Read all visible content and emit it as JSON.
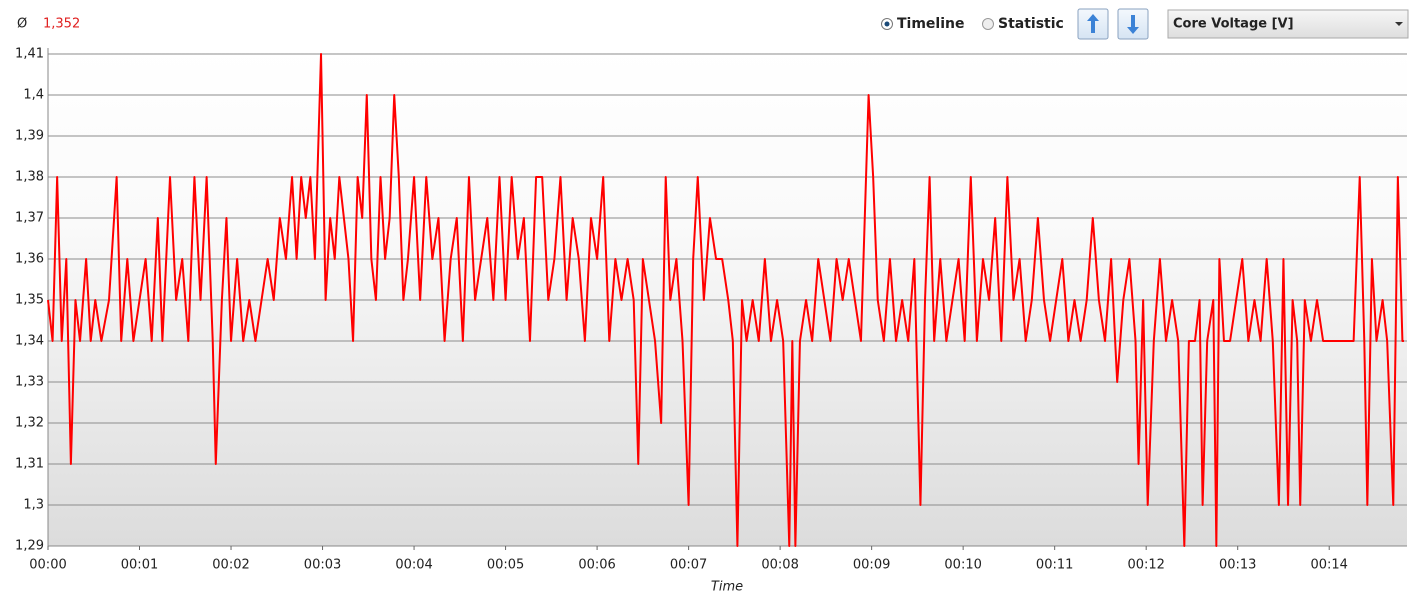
{
  "toolbar": {
    "average_symbol": "Ø",
    "average": "1,352",
    "radio_timeline": "Timeline",
    "radio_statistic": "Statistic",
    "sensor_select": "Core Voltage [V]"
  },
  "chart_data": {
    "type": "line",
    "color": "#ff0000",
    "grid": true,
    "xlabel": "Time",
    "xlim": [
      0,
      891
    ],
    "ylim": [
      1.29,
      1.41
    ],
    "xticks": [
      {
        "value": 0,
        "label": "00:00"
      },
      {
        "value": 60,
        "label": "00:01"
      },
      {
        "value": 120,
        "label": "00:02"
      },
      {
        "value": 180,
        "label": "00:03"
      },
      {
        "value": 240,
        "label": "00:04"
      },
      {
        "value": 300,
        "label": "00:05"
      },
      {
        "value": 360,
        "label": "00:06"
      },
      {
        "value": 420,
        "label": "00:07"
      },
      {
        "value": 480,
        "label": "00:08"
      },
      {
        "value": 540,
        "label": "00:09"
      },
      {
        "value": 600,
        "label": "00:10"
      },
      {
        "value": 660,
        "label": "00:11"
      },
      {
        "value": 720,
        "label": "00:12"
      },
      {
        "value": 780,
        "label": "00:13"
      },
      {
        "value": 840,
        "label": "00:14"
      }
    ],
    "yticks": [
      {
        "value": 1.29,
        "label": "1,29"
      },
      {
        "value": 1.3,
        "label": "1,3"
      },
      {
        "value": 1.31,
        "label": "1,31"
      },
      {
        "value": 1.32,
        "label": "1,32"
      },
      {
        "value": 1.33,
        "label": "1,33"
      },
      {
        "value": 1.34,
        "label": "1,34"
      },
      {
        "value": 1.35,
        "label": "1,35"
      },
      {
        "value": 1.36,
        "label": "1,36"
      },
      {
        "value": 1.37,
        "label": "1,37"
      },
      {
        "value": 1.38,
        "label": "1,38"
      },
      {
        "value": 1.39,
        "label": "1,39"
      },
      {
        "value": 1.4,
        "label": "1,4"
      },
      {
        "value": 1.41,
        "label": "1,41"
      }
    ],
    "x": [
      0,
      3,
      6,
      9,
      12,
      15,
      18,
      21,
      25,
      28,
      31,
      35,
      40,
      45,
      48,
      52,
      56,
      60,
      64,
      68,
      72,
      75,
      80,
      84,
      88,
      92,
      96,
      100,
      104,
      108,
      110,
      114,
      117,
      120,
      124,
      128,
      132,
      136,
      140,
      144,
      148,
      152,
      156,
      160,
      163,
      166,
      169,
      172,
      175,
      179,
      182,
      185,
      188,
      191,
      194,
      197,
      200,
      203,
      206,
      209,
      212,
      215,
      218,
      221,
      224,
      227,
      230,
      233,
      236,
      240,
      244,
      248,
      252,
      256,
      260,
      264,
      268,
      272,
      276,
      280,
      284,
      288,
      292,
      296,
      300,
      304,
      308,
      312,
      316,
      320,
      324,
      328,
      332,
      336,
      340,
      344,
      348,
      352,
      356,
      360,
      364,
      368,
      372,
      376,
      380,
      384,
      387,
      390,
      394,
      398,
      402,
      405,
      408,
      412,
      416,
      420,
      423,
      426,
      430,
      434,
      438,
      442,
      446,
      449,
      452,
      455,
      458,
      462,
      466,
      470,
      474,
      478,
      482,
      486,
      488,
      490,
      493,
      497,
      501,
      505,
      509,
      513,
      517,
      521,
      525,
      529,
      533,
      538,
      541,
      544,
      548,
      552,
      556,
      560,
      564,
      568,
      572,
      575,
      578,
      581,
      585,
      589,
      593,
      597,
      601,
      605,
      609,
      613,
      617,
      621,
      625,
      629,
      633,
      637,
      641,
      645,
      649,
      653,
      657,
      661,
      665,
      669,
      673,
      677,
      681,
      685,
      689,
      693,
      697,
      701,
      705,
      709,
      713,
      715,
      718,
      721,
      725,
      729,
      733,
      737,
      741,
      745,
      748,
      752,
      755,
      757,
      760,
      764,
      766,
      768,
      771,
      775,
      779,
      783,
      787,
      791,
      795,
      799,
      803,
      807,
      810,
      813,
      816,
      819,
      821,
      824,
      828,
      832,
      836,
      840,
      844,
      848,
      852,
      856,
      860,
      863,
      865,
      868,
      871,
      875,
      878,
      882,
      885,
      888,
      889
    ],
    "values": [
      1.35,
      1.34,
      1.38,
      1.34,
      1.36,
      1.31,
      1.35,
      1.34,
      1.36,
      1.34,
      1.35,
      1.34,
      1.35,
      1.38,
      1.34,
      1.36,
      1.34,
      1.35,
      1.36,
      1.34,
      1.37,
      1.34,
      1.38,
      1.35,
      1.36,
      1.34,
      1.38,
      1.35,
      1.38,
      1.34,
      1.31,
      1.35,
      1.37,
      1.34,
      1.36,
      1.34,
      1.35,
      1.34,
      1.35,
      1.36,
      1.35,
      1.37,
      1.36,
      1.38,
      1.36,
      1.38,
      1.37,
      1.38,
      1.36,
      1.41,
      1.35,
      1.37,
      1.36,
      1.38,
      1.37,
      1.36,
      1.34,
      1.38,
      1.37,
      1.4,
      1.36,
      1.35,
      1.38,
      1.36,
      1.37,
      1.4,
      1.38,
      1.35,
      1.36,
      1.38,
      1.35,
      1.38,
      1.36,
      1.37,
      1.34,
      1.36,
      1.37,
      1.34,
      1.38,
      1.35,
      1.36,
      1.37,
      1.35,
      1.38,
      1.35,
      1.38,
      1.36,
      1.37,
      1.34,
      1.38,
      1.38,
      1.35,
      1.36,
      1.38,
      1.35,
      1.37,
      1.36,
      1.34,
      1.37,
      1.36,
      1.38,
      1.34,
      1.36,
      1.35,
      1.36,
      1.35,
      1.31,
      1.36,
      1.35,
      1.34,
      1.32,
      1.38,
      1.35,
      1.36,
      1.34,
      1.3,
      1.36,
      1.38,
      1.35,
      1.37,
      1.36,
      1.36,
      1.35,
      1.34,
      1.29,
      1.35,
      1.34,
      1.35,
      1.34,
      1.36,
      1.34,
      1.35,
      1.34,
      1.29,
      1.34,
      1.29,
      1.34,
      1.35,
      1.34,
      1.36,
      1.35,
      1.34,
      1.36,
      1.35,
      1.36,
      1.35,
      1.34,
      1.4,
      1.38,
      1.35,
      1.34,
      1.36,
      1.34,
      1.35,
      1.34,
      1.36,
      1.3,
      1.35,
      1.38,
      1.34,
      1.36,
      1.34,
      1.35,
      1.36,
      1.34,
      1.38,
      1.34,
      1.36,
      1.35,
      1.37,
      1.34,
      1.38,
      1.35,
      1.36,
      1.34,
      1.35,
      1.37,
      1.35,
      1.34,
      1.35,
      1.36,
      1.34,
      1.35,
      1.34,
      1.35,
      1.37,
      1.35,
      1.34,
      1.36,
      1.33,
      1.35,
      1.36,
      1.34,
      1.31,
      1.35,
      1.3,
      1.34,
      1.36,
      1.34,
      1.35,
      1.34,
      1.29,
      1.34,
      1.34,
      1.35,
      1.3,
      1.34,
      1.35,
      1.29,
      1.36,
      1.34,
      1.34,
      1.35,
      1.36,
      1.34,
      1.35,
      1.34,
      1.36,
      1.34,
      1.3,
      1.36,
      1.3,
      1.35,
      1.34,
      1.3,
      1.35,
      1.34,
      1.35,
      1.34,
      1.34,
      1.34,
      1.34,
      1.34,
      1.34,
      1.38,
      1.34,
      1.3,
      1.36,
      1.34,
      1.35,
      1.34,
      1.3,
      1.38,
      1.34,
      1.34
    ]
  }
}
